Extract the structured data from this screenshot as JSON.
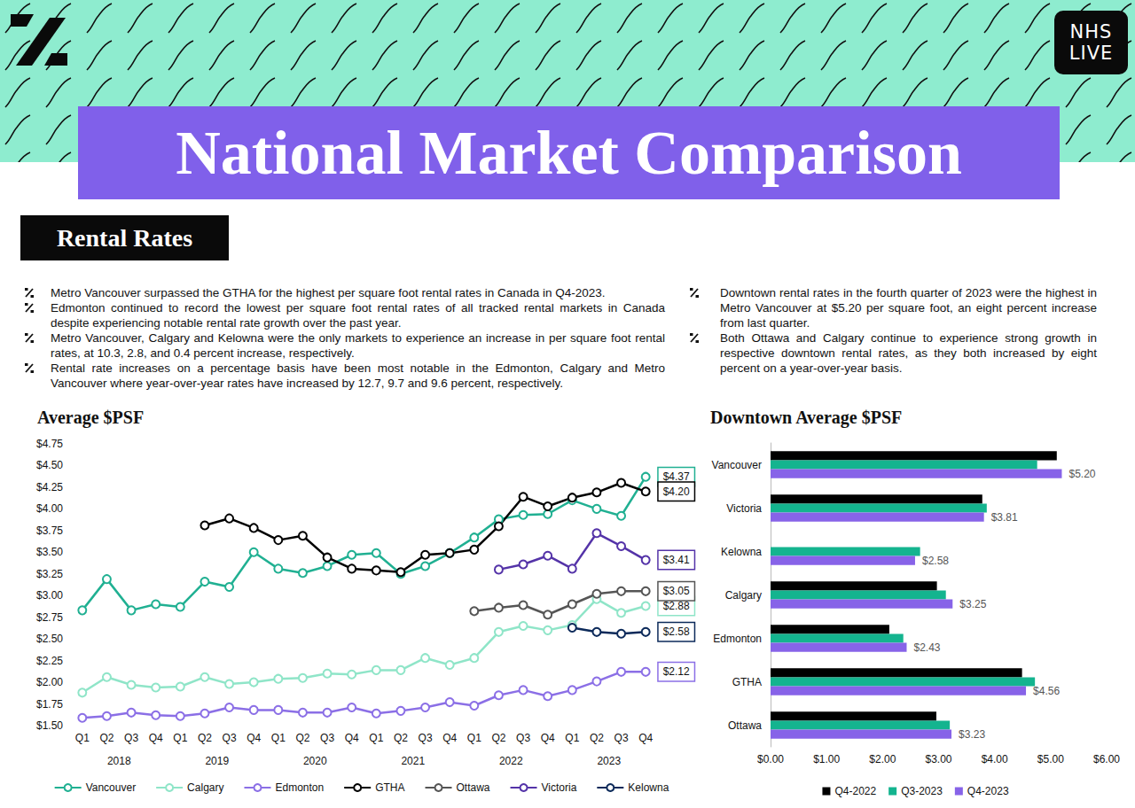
{
  "header": {
    "title": "National Market Comparison",
    "logo": [
      "NHS",
      "LIVE"
    ],
    "section": "Rental Rates"
  },
  "bullets_left": [
    "Metro Vancouver surpassed the GTHA for the highest per square foot rental rates in Canada in Q4-2023.",
    "Edmonton continued to record the lowest per square foot rental rates of all tracked rental markets in Canada despite experiencing notable rental rate growth over the past year.",
    "Metro Vancouver, Calgary and Kelowna were the only markets to experience an increase in per square foot rental rates, at 10.3, 2.8, and 0.4 percent increase, respectively.",
    "Rental rate increases on a percentage basis have been most notable in the Edmonton, Calgary and Metro Vancouver where year-over-year rates have increased by 12.7, 9.7 and 9.6 percent, respectively."
  ],
  "bullets_right": [
    "Downtown rental rates in the fourth quarter of 2023 were the highest in Metro Vancouver at $5.20 per square foot, an eight percent increase from last quarter.",
    "Both Ottawa and Calgary continue to experience strong growth in respective downtown rental rates, as they both increased by eight percent on a year-over-year basis."
  ],
  "chart_data": [
    {
      "type": "line",
      "title": "Average $PSF",
      "categories": [
        "Q1",
        "Q2",
        "Q3",
        "Q4",
        "Q1",
        "Q2",
        "Q3",
        "Q4",
        "Q1",
        "Q2",
        "Q3",
        "Q4",
        "Q1",
        "Q2",
        "Q3",
        "Q4",
        "Q1",
        "Q2",
        "Q3",
        "Q4",
        "Q1",
        "Q2",
        "Q3",
        "Q4"
      ],
      "x_groups": [
        "2018",
        "2019",
        "2020",
        "2021",
        "2022",
        "2023"
      ],
      "ylim": [
        1.5,
        4.75
      ],
      "yticks": [
        {
          "value": 1.5,
          "label": "$1.50"
        },
        {
          "value": 1.75,
          "label": "$1.75"
        },
        {
          "value": 2,
          "label": "$2.00"
        },
        {
          "value": 2.25,
          "label": "$2.25"
        },
        {
          "value": 2.5,
          "label": "$2.50"
        },
        {
          "value": 2.75,
          "label": "$2.75"
        },
        {
          "value": 3,
          "label": "$3.00"
        },
        {
          "value": 3.25,
          "label": "$3.25"
        },
        {
          "value": 3.5,
          "label": "$3.50"
        },
        {
          "value": 3.75,
          "label": "$3.75"
        },
        {
          "value": 4,
          "label": "$4.00"
        },
        {
          "value": 4.25,
          "label": "$4.25"
        },
        {
          "value": 4.5,
          "label": "$4.50"
        },
        {
          "value": 4.75,
          "label": "$4.75"
        }
      ],
      "grid": false,
      "legend": "bottom",
      "data_labels": true,
      "marker": "open_circle",
      "line_style": "solid",
      "series": [
        {
          "name": "Vancouver",
          "color": "#20b092",
          "values": [
            2.83,
            3.19,
            2.83,
            2.9,
            2.87,
            3.16,
            3.1,
            3.5,
            3.31,
            3.26,
            3.34,
            3.47,
            3.49,
            3.25,
            3.34,
            3.49,
            3.67,
            3.88,
            3.93,
            3.94,
            4.1,
            4.0,
            3.92,
            4.37
          ],
          "value_labels": [
            null,
            null,
            null,
            null,
            null,
            null,
            null,
            null,
            null,
            null,
            null,
            null,
            null,
            null,
            null,
            null,
            null,
            null,
            null,
            null,
            null,
            null,
            null,
            "$4.37"
          ]
        },
        {
          "name": "Calgary",
          "color": "#8fe5c8",
          "values": [
            1.88,
            2.06,
            1.97,
            1.94,
            1.95,
            2.06,
            1.98,
            2.0,
            2.04,
            2.05,
            2.1,
            2.09,
            2.14,
            2.14,
            2.28,
            2.2,
            2.28,
            2.58,
            2.65,
            2.6,
            2.66,
            2.96,
            2.8,
            2.88
          ],
          "value_labels": [
            null,
            null,
            null,
            null,
            null,
            null,
            null,
            null,
            null,
            null,
            null,
            null,
            null,
            null,
            null,
            null,
            null,
            null,
            null,
            null,
            null,
            null,
            null,
            "$2.88"
          ]
        },
        {
          "name": "Edmonton",
          "color": "#8b6fe6",
          "values": [
            1.59,
            1.61,
            1.65,
            1.62,
            1.61,
            1.64,
            1.71,
            1.68,
            1.68,
            1.65,
            1.65,
            1.71,
            1.64,
            1.67,
            1.71,
            1.77,
            1.73,
            1.85,
            1.91,
            1.84,
            1.91,
            2.01,
            2.12,
            2.12
          ],
          "value_labels": [
            null,
            null,
            null,
            null,
            null,
            null,
            null,
            null,
            null,
            null,
            null,
            null,
            null,
            null,
            null,
            null,
            null,
            null,
            null,
            null,
            null,
            null,
            null,
            "$2.12"
          ]
        },
        {
          "name": "GTHA",
          "color": "#000000",
          "values": [
            null,
            null,
            null,
            null,
            null,
            3.81,
            3.89,
            3.78,
            3.64,
            3.69,
            3.44,
            3.31,
            3.29,
            3.27,
            3.47,
            3.49,
            3.53,
            3.8,
            4.14,
            4.03,
            4.13,
            4.19,
            4.3,
            4.2
          ],
          "value_labels": [
            null,
            null,
            null,
            null,
            null,
            null,
            null,
            null,
            null,
            null,
            null,
            null,
            null,
            null,
            null,
            null,
            null,
            null,
            null,
            null,
            null,
            null,
            null,
            "$4.20"
          ]
        },
        {
          "name": "Ottawa",
          "color": "#555555",
          "values": [
            null,
            null,
            null,
            null,
            null,
            null,
            null,
            null,
            null,
            null,
            null,
            null,
            null,
            null,
            null,
            null,
            2.82,
            2.86,
            2.89,
            2.78,
            2.9,
            3.02,
            3.05,
            3.05
          ],
          "value_labels": [
            null,
            null,
            null,
            null,
            null,
            null,
            null,
            null,
            null,
            null,
            null,
            null,
            null,
            null,
            null,
            null,
            null,
            null,
            null,
            null,
            null,
            null,
            null,
            "$3.05"
          ]
        },
        {
          "name": "Victoria",
          "color": "#5433a8",
          "values": [
            null,
            null,
            null,
            null,
            null,
            null,
            null,
            null,
            null,
            null,
            null,
            null,
            null,
            null,
            null,
            null,
            null,
            3.3,
            3.36,
            3.46,
            3.31,
            3.72,
            3.57,
            3.41
          ],
          "value_labels": [
            null,
            null,
            null,
            null,
            null,
            null,
            null,
            null,
            null,
            null,
            null,
            null,
            null,
            null,
            null,
            null,
            null,
            null,
            null,
            null,
            null,
            null,
            null,
            "$3.41"
          ]
        },
        {
          "name": "Kelowna",
          "color": "#0c2a5a",
          "values": [
            null,
            null,
            null,
            null,
            null,
            null,
            null,
            null,
            null,
            null,
            null,
            null,
            null,
            null,
            null,
            null,
            null,
            null,
            null,
            null,
            2.63,
            2.58,
            2.56,
            2.58
          ],
          "value_labels": [
            null,
            null,
            null,
            null,
            null,
            null,
            null,
            null,
            null,
            null,
            null,
            null,
            null,
            null,
            null,
            null,
            null,
            null,
            null,
            null,
            null,
            null,
            null,
            "$2.58"
          ]
        }
      ]
    },
    {
      "type": "bar",
      "title": "Downtown Average $PSF",
      "orientation": "horizontal",
      "categories": [
        "Vancouver",
        "Victoria",
        "Kelowna",
        "Calgary",
        "Edmonton",
        "GTHA",
        "Ottawa"
      ],
      "xlim": [
        0,
        6
      ],
      "xticks": [
        {
          "value": 0,
          "label": "$0.00"
        },
        {
          "value": 1,
          "label": "$1.00"
        },
        {
          "value": 2,
          "label": "$2.00"
        },
        {
          "value": 3,
          "label": "$3.00"
        },
        {
          "value": 4,
          "label": "$4.00"
        },
        {
          "value": 5,
          "label": "$5.00"
        },
        {
          "value": 6,
          "label": "$6.00"
        }
      ],
      "grid": false,
      "legend": "bottom",
      "data_labels": true,
      "series": [
        {
          "name": "Q4-2022",
          "color": "#000000",
          "values": [
            5.11,
            3.78,
            null,
            2.97,
            2.12,
            4.49,
            2.96
          ]
        },
        {
          "name": "Q3-2023",
          "color": "#14b48f",
          "values": [
            4.76,
            3.86,
            2.67,
            3.13,
            2.37,
            4.72,
            3.2
          ]
        },
        {
          "name": "Q4-2023",
          "color": "#8763e8",
          "values": [
            5.2,
            3.81,
            2.58,
            3.25,
            2.43,
            4.56,
            3.23
          ],
          "value_labels": [
            "$5.20",
            "$3.81",
            "$2.58",
            "$3.25",
            "$2.43",
            "$4.56",
            "$3.23"
          ]
        }
      ]
    }
  ]
}
